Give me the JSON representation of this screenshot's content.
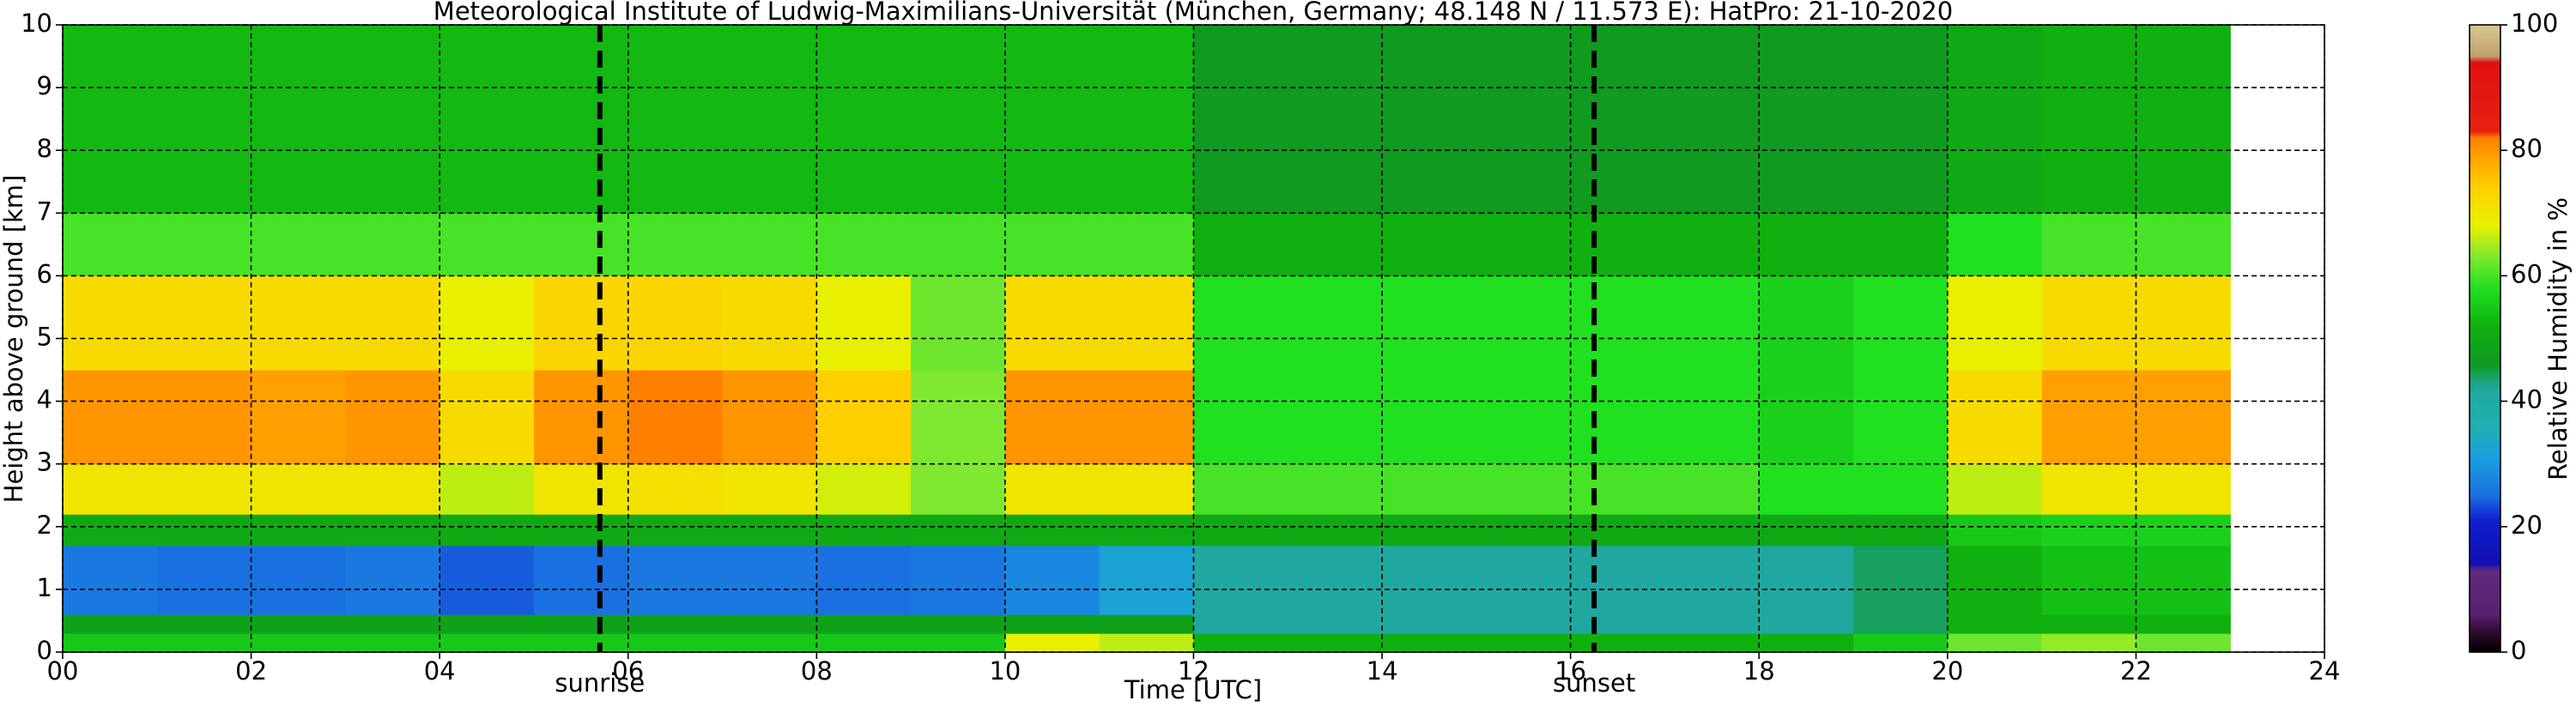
{
  "chart_data": {
    "type": "heatmap",
    "title": "Meteorological Institute of Ludwig-Maximilians-Universität (München, Germany; 48.148 N / 11.573 E):    HatPro: 21-10-2020",
    "x_label": "Time [UTC]",
    "y_label": "Height above ground [km]",
    "colorbar_label": "Relative Humidity in %",
    "xlim": [
      0,
      24
    ],
    "ylim": [
      0,
      10
    ],
    "xticks": [
      {
        "value": 0,
        "label": "00"
      },
      {
        "value": 2,
        "label": "02"
      },
      {
        "value": 4,
        "label": "04"
      },
      {
        "value": 6,
        "label": "06"
      },
      {
        "value": 8,
        "label": "08"
      },
      {
        "value": 10,
        "label": "10"
      },
      {
        "value": 12,
        "label": "12"
      },
      {
        "value": 14,
        "label": "14"
      },
      {
        "value": 16,
        "label": "16"
      },
      {
        "value": 18,
        "label": "18"
      },
      {
        "value": 20,
        "label": "20"
      },
      {
        "value": 22,
        "label": "22"
      },
      {
        "value": 24,
        "label": "24"
      }
    ],
    "yticks": [
      0,
      1,
      2,
      3,
      4,
      5,
      6,
      7,
      8,
      9,
      10
    ],
    "grid": true,
    "x_edges": [
      0,
      1,
      2,
      3,
      4,
      5,
      6,
      7,
      8,
      9,
      10,
      11,
      12,
      13,
      14,
      15,
      16,
      17,
      18,
      19,
      20,
      21,
      22,
      23
    ],
    "y_edges": [
      0,
      0.3,
      0.6,
      1.7,
      2.2,
      3,
      4.5,
      6,
      7,
      10
    ],
    "z": [
      [
        55,
        55,
        55,
        55,
        55,
        55,
        55,
        55,
        55,
        55,
        68,
        66,
        52,
        52,
        52,
        52,
        52,
        52,
        52,
        55,
        62,
        64,
        62
      ],
      [
        48,
        48,
        48,
        48,
        48,
        48,
        48,
        48,
        48,
        48,
        48,
        48,
        42,
        42,
        42,
        42,
        42,
        42,
        42,
        44,
        52,
        52,
        52
      ],
      [
        26,
        25,
        25,
        26,
        24,
        25,
        26,
        26,
        25,
        26,
        28,
        32,
        42,
        42,
        42,
        42,
        42,
        42,
        42,
        44,
        52,
        54,
        54
      ],
      [
        50,
        50,
        50,
        50,
        50,
        50,
        50,
        50,
        50,
        50,
        50,
        50,
        50,
        50,
        50,
        50,
        50,
        50,
        50,
        50,
        55,
        56,
        56
      ],
      [
        70,
        70,
        70,
        70,
        66,
        70,
        71,
        70,
        67,
        63,
        70,
        70,
        60,
        60,
        60,
        60,
        60,
        60,
        58,
        58,
        66,
        70,
        70
      ],
      [
        80,
        80,
        79,
        80,
        72,
        80,
        82,
        80,
        74,
        63,
        80,
        80,
        58,
        58,
        58,
        58,
        58,
        58,
        56,
        58,
        72,
        79,
        79
      ],
      [
        72,
        72,
        72,
        72,
        68,
        73,
        73,
        72,
        68,
        62,
        72,
        72,
        58,
        58,
        58,
        58,
        58,
        58,
        56,
        58,
        68,
        72,
        72
      ],
      [
        60,
        60,
        60,
        60,
        60,
        60,
        60,
        60,
        60,
        60,
        60,
        60,
        52,
        52,
        52,
        52,
        52,
        52,
        52,
        52,
        58,
        60,
        60
      ],
      [
        53,
        53,
        53,
        53,
        53,
        53,
        53,
        53,
        53,
        53,
        53,
        53,
        46,
        46,
        46,
        46,
        46,
        46,
        46,
        46,
        50,
        52,
        52
      ]
    ],
    "colorscale": [
      {
        "value": 0,
        "color": "#000000"
      },
      {
        "value": 3,
        "color": "#2a0a2a"
      },
      {
        "value": 6,
        "color": "#5a2070"
      },
      {
        "value": 13,
        "color": "#602a80"
      },
      {
        "value": 14,
        "color": "#1010b0"
      },
      {
        "value": 21,
        "color": "#1020d0"
      },
      {
        "value": 25,
        "color": "#1a70e0"
      },
      {
        "value": 31,
        "color": "#1aa0e0"
      },
      {
        "value": 36,
        "color": "#20b0b0"
      },
      {
        "value": 42,
        "color": "#20a8a0"
      },
      {
        "value": 46,
        "color": "#109a20"
      },
      {
        "value": 52,
        "color": "#10b010"
      },
      {
        "value": 58,
        "color": "#20e020"
      },
      {
        "value": 63,
        "color": "#80e830"
      },
      {
        "value": 68,
        "color": "#e8f000"
      },
      {
        "value": 74,
        "color": "#ffd000"
      },
      {
        "value": 79,
        "color": "#ffa000"
      },
      {
        "value": 82,
        "color": "#ff8000"
      },
      {
        "value": 83,
        "color": "#e82010"
      },
      {
        "value": 94,
        "color": "#e01010"
      },
      {
        "value": 95,
        "color": "#c0a070"
      },
      {
        "value": 100,
        "color": "#d8c890"
      }
    ],
    "clim": [
      0,
      100
    ],
    "cticks": [
      0,
      20,
      40,
      60,
      80,
      100
    ],
    "annotations": [
      {
        "x": 5.7,
        "label": "sunrise"
      },
      {
        "x": 16.25,
        "label": "sunset"
      }
    ]
  }
}
